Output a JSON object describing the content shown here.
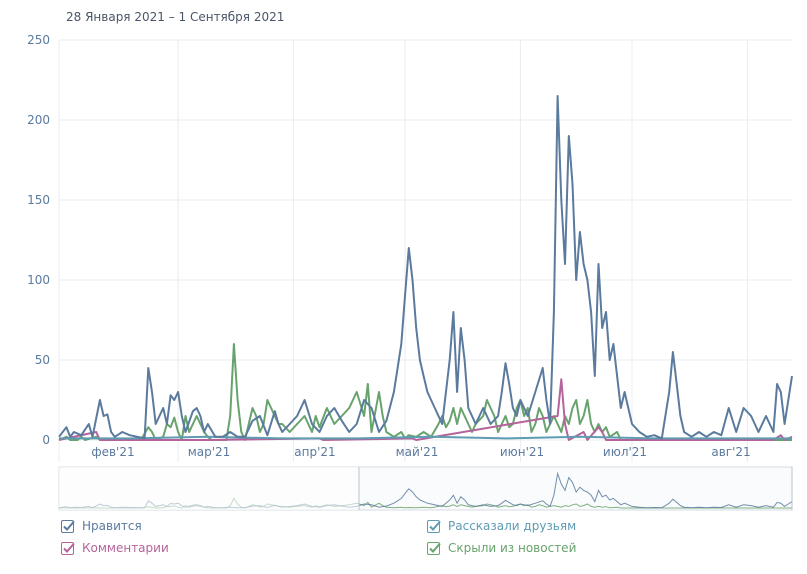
{
  "header": {
    "date_range": "28 Января 2021 – 1 Сентября 2021"
  },
  "colors": {
    "likes": "#5a7a9e",
    "comments": "#b5639b",
    "shares": "#5e9cb2",
    "hidden": "#67a36c",
    "grid": "#e8ecf0",
    "axis_text": "#5b7a9d"
  },
  "legend": [
    {
      "key": "likes",
      "label": "Нравится",
      "checked": true
    },
    {
      "key": "shares",
      "label": "Рассказали друзьям",
      "checked": true
    },
    {
      "key": "comments",
      "label": "Комментарии",
      "checked": true
    },
    {
      "key": "hidden",
      "label": "Скрыли из новостей",
      "checked": true
    }
  ],
  "chart_data": {
    "type": "line",
    "title": "",
    "xlabel": "",
    "ylabel": "",
    "x_range": [
      "2021-01-28",
      "2021-09-01"
    ],
    "x_tick_labels": [
      "фев'21",
      "мар'21",
      "апр'21",
      "май'21",
      "июн'21",
      "июл'21",
      "авг'21"
    ],
    "y_ticks": [
      0,
      50,
      100,
      150,
      200,
      250
    ],
    "ylim": [
      0,
      250
    ],
    "series": [
      {
        "name": "Нравится",
        "key": "likes",
        "points": [
          [
            0,
            2
          ],
          [
            2,
            8
          ],
          [
            3,
            2
          ],
          [
            4,
            5
          ],
          [
            6,
            3
          ],
          [
            8,
            10
          ],
          [
            9,
            2
          ],
          [
            11,
            25
          ],
          [
            12,
            15
          ],
          [
            13,
            16
          ],
          [
            14,
            5
          ],
          [
            15,
            2
          ],
          [
            17,
            5
          ],
          [
            19,
            3
          ],
          [
            23,
            1
          ],
          [
            24,
            45
          ],
          [
            25,
            30
          ],
          [
            26,
            10
          ],
          [
            28,
            20
          ],
          [
            29,
            10
          ],
          [
            30,
            28
          ],
          [
            31,
            25
          ],
          [
            32,
            30
          ],
          [
            33,
            15
          ],
          [
            34,
            5
          ],
          [
            36,
            18
          ],
          [
            37,
            20
          ],
          [
            38,
            15
          ],
          [
            39,
            5
          ],
          [
            40,
            10
          ],
          [
            42,
            2
          ],
          [
            44,
            2
          ],
          [
            46,
            5
          ],
          [
            48,
            2
          ],
          [
            50,
            2
          ],
          [
            52,
            12
          ],
          [
            54,
            15
          ],
          [
            56,
            3
          ],
          [
            58,
            18
          ],
          [
            59,
            10
          ],
          [
            60,
            5
          ],
          [
            62,
            10
          ],
          [
            64,
            15
          ],
          [
            66,
            25
          ],
          [
            68,
            10
          ],
          [
            70,
            5
          ],
          [
            72,
            15
          ],
          [
            74,
            20
          ],
          [
            76,
            12
          ],
          [
            78,
            5
          ],
          [
            80,
            10
          ],
          [
            82,
            25
          ],
          [
            84,
            20
          ],
          [
            86,
            5
          ],
          [
            88,
            12
          ],
          [
            90,
            30
          ],
          [
            92,
            60
          ],
          [
            93,
            90
          ],
          [
            94,
            120
          ],
          [
            95,
            100
          ],
          [
            96,
            70
          ],
          [
            97,
            50
          ],
          [
            98,
            40
          ],
          [
            99,
            30
          ],
          [
            100,
            25
          ],
          [
            102,
            15
          ],
          [
            103,
            10
          ],
          [
            105,
            50
          ],
          [
            106,
            80
          ],
          [
            107,
            30
          ],
          [
            108,
            70
          ],
          [
            109,
            50
          ],
          [
            110,
            20
          ],
          [
            111,
            15
          ],
          [
            112,
            10
          ],
          [
            114,
            20
          ],
          [
            116,
            10
          ],
          [
            118,
            15
          ],
          [
            119,
            30
          ],
          [
            120,
            48
          ],
          [
            121,
            35
          ],
          [
            122,
            20
          ],
          [
            123,
            15
          ],
          [
            124,
            25
          ],
          [
            126,
            15
          ],
          [
            128,
            30
          ],
          [
            130,
            45
          ],
          [
            131,
            25
          ],
          [
            132,
            10
          ],
          [
            133,
            80
          ],
          [
            134,
            215
          ],
          [
            135,
            150
          ],
          [
            136,
            110
          ],
          [
            137,
            190
          ],
          [
            138,
            160
          ],
          [
            139,
            100
          ],
          [
            140,
            130
          ],
          [
            141,
            110
          ],
          [
            142,
            100
          ],
          [
            143,
            80
          ],
          [
            144,
            40
          ],
          [
            145,
            110
          ],
          [
            146,
            70
          ],
          [
            147,
            80
          ],
          [
            148,
            50
          ],
          [
            149,
            60
          ],
          [
            150,
            40
          ],
          [
            151,
            20
          ],
          [
            152,
            30
          ],
          [
            153,
            20
          ],
          [
            154,
            10
          ],
          [
            156,
            5
          ],
          [
            158,
            2
          ],
          [
            160,
            3
          ],
          [
            162,
            1
          ],
          [
            164,
            30
          ],
          [
            165,
            55
          ],
          [
            166,
            35
          ],
          [
            167,
            15
          ],
          [
            168,
            5
          ],
          [
            170,
            2
          ],
          [
            172,
            5
          ],
          [
            174,
            2
          ],
          [
            176,
            5
          ],
          [
            178,
            3
          ],
          [
            180,
            20
          ],
          [
            182,
            5
          ],
          [
            184,
            20
          ],
          [
            186,
            15
          ],
          [
            188,
            5
          ],
          [
            190,
            15
          ],
          [
            192,
            5
          ],
          [
            193,
            35
          ],
          [
            194,
            30
          ],
          [
            195,
            10
          ],
          [
            196,
            25
          ],
          [
            197,
            40
          ]
        ]
      },
      {
        "name": "Рассказали друзьям",
        "key": "shares",
        "points": [
          [
            0,
            1
          ],
          [
            20,
            1
          ],
          [
            40,
            2
          ],
          [
            60,
            1
          ],
          [
            80,
            1
          ],
          [
            100,
            2
          ],
          [
            120,
            1
          ],
          [
            140,
            2
          ],
          [
            160,
            1
          ],
          [
            180,
            1
          ],
          [
            197,
            1
          ]
        ]
      },
      {
        "name": "Комментарии",
        "key": "comments",
        "points": [
          [
            0,
            0
          ],
          [
            10,
            5
          ],
          [
            11,
            0
          ],
          [
            40,
            0
          ],
          [
            70,
            1
          ],
          [
            71,
            0
          ],
          [
            95,
            1
          ],
          [
            96,
            0
          ],
          [
            134,
            15
          ],
          [
            135,
            38
          ],
          [
            136,
            10
          ],
          [
            137,
            0
          ],
          [
            141,
            5
          ],
          [
            142,
            0
          ],
          [
            145,
            8
          ],
          [
            146,
            5
          ],
          [
            147,
            0
          ],
          [
            192,
            0
          ],
          [
            194,
            3
          ],
          [
            195,
            0
          ],
          [
            197,
            2
          ]
        ]
      },
      {
        "name": "Скрыли из новостей",
        "key": "hidden",
        "points": [
          [
            0,
            0
          ],
          [
            2,
            2
          ],
          [
            3,
            0
          ],
          [
            5,
            0
          ],
          [
            6,
            2
          ],
          [
            7,
            0
          ],
          [
            10,
            2
          ],
          [
            11,
            0
          ],
          [
            22,
            0
          ],
          [
            24,
            8
          ],
          [
            25,
            5
          ],
          [
            26,
            0
          ],
          [
            28,
            2
          ],
          [
            29,
            10
          ],
          [
            30,
            8
          ],
          [
            31,
            14
          ],
          [
            32,
            5
          ],
          [
            33,
            0
          ],
          [
            34,
            15
          ],
          [
            35,
            5
          ],
          [
            36,
            10
          ],
          [
            37,
            15
          ],
          [
            38,
            10
          ],
          [
            39,
            5
          ],
          [
            40,
            2
          ],
          [
            41,
            0
          ],
          [
            45,
            0
          ],
          [
            46,
            15
          ],
          [
            47,
            60
          ],
          [
            48,
            25
          ],
          [
            49,
            5
          ],
          [
            50,
            0
          ],
          [
            52,
            20
          ],
          [
            53,
            15
          ],
          [
            54,
            5
          ],
          [
            55,
            10
          ],
          [
            56,
            25
          ],
          [
            57,
            20
          ],
          [
            58,
            15
          ],
          [
            59,
            10
          ],
          [
            60,
            10
          ],
          [
            62,
            5
          ],
          [
            64,
            10
          ],
          [
            66,
            15
          ],
          [
            68,
            5
          ],
          [
            69,
            15
          ],
          [
            70,
            8
          ],
          [
            72,
            20
          ],
          [
            74,
            10
          ],
          [
            76,
            15
          ],
          [
            78,
            20
          ],
          [
            80,
            30
          ],
          [
            82,
            15
          ],
          [
            83,
            35
          ],
          [
            84,
            5
          ],
          [
            86,
            30
          ],
          [
            87,
            15
          ],
          [
            88,
            5
          ],
          [
            90,
            2
          ],
          [
            92,
            5
          ],
          [
            93,
            1
          ],
          [
            94,
            3
          ],
          [
            96,
            2
          ],
          [
            98,
            5
          ],
          [
            100,
            2
          ],
          [
            102,
            10
          ],
          [
            103,
            15
          ],
          [
            104,
            8
          ],
          [
            105,
            12
          ],
          [
            106,
            20
          ],
          [
            107,
            10
          ],
          [
            108,
            20
          ],
          [
            109,
            15
          ],
          [
            110,
            10
          ],
          [
            111,
            5
          ],
          [
            112,
            10
          ],
          [
            114,
            15
          ],
          [
            115,
            25
          ],
          [
            116,
            20
          ],
          [
            117,
            15
          ],
          [
            118,
            5
          ],
          [
            119,
            10
          ],
          [
            120,
            15
          ],
          [
            121,
            8
          ],
          [
            122,
            10
          ],
          [
            123,
            20
          ],
          [
            124,
            25
          ],
          [
            125,
            15
          ],
          [
            126,
            20
          ],
          [
            127,
            5
          ],
          [
            128,
            10
          ],
          [
            129,
            20
          ],
          [
            130,
            15
          ],
          [
            131,
            5
          ],
          [
            132,
            10
          ],
          [
            133,
            15
          ],
          [
            134,
            10
          ],
          [
            135,
            5
          ],
          [
            136,
            15
          ],
          [
            137,
            10
          ],
          [
            138,
            20
          ],
          [
            139,
            25
          ],
          [
            140,
            10
          ],
          [
            141,
            15
          ],
          [
            142,
            25
          ],
          [
            143,
            10
          ],
          [
            144,
            5
          ],
          [
            145,
            10
          ],
          [
            146,
            5
          ],
          [
            147,
            8
          ],
          [
            148,
            2
          ],
          [
            150,
            5
          ],
          [
            151,
            0
          ],
          [
            197,
            0
          ]
        ]
      }
    ]
  }
}
